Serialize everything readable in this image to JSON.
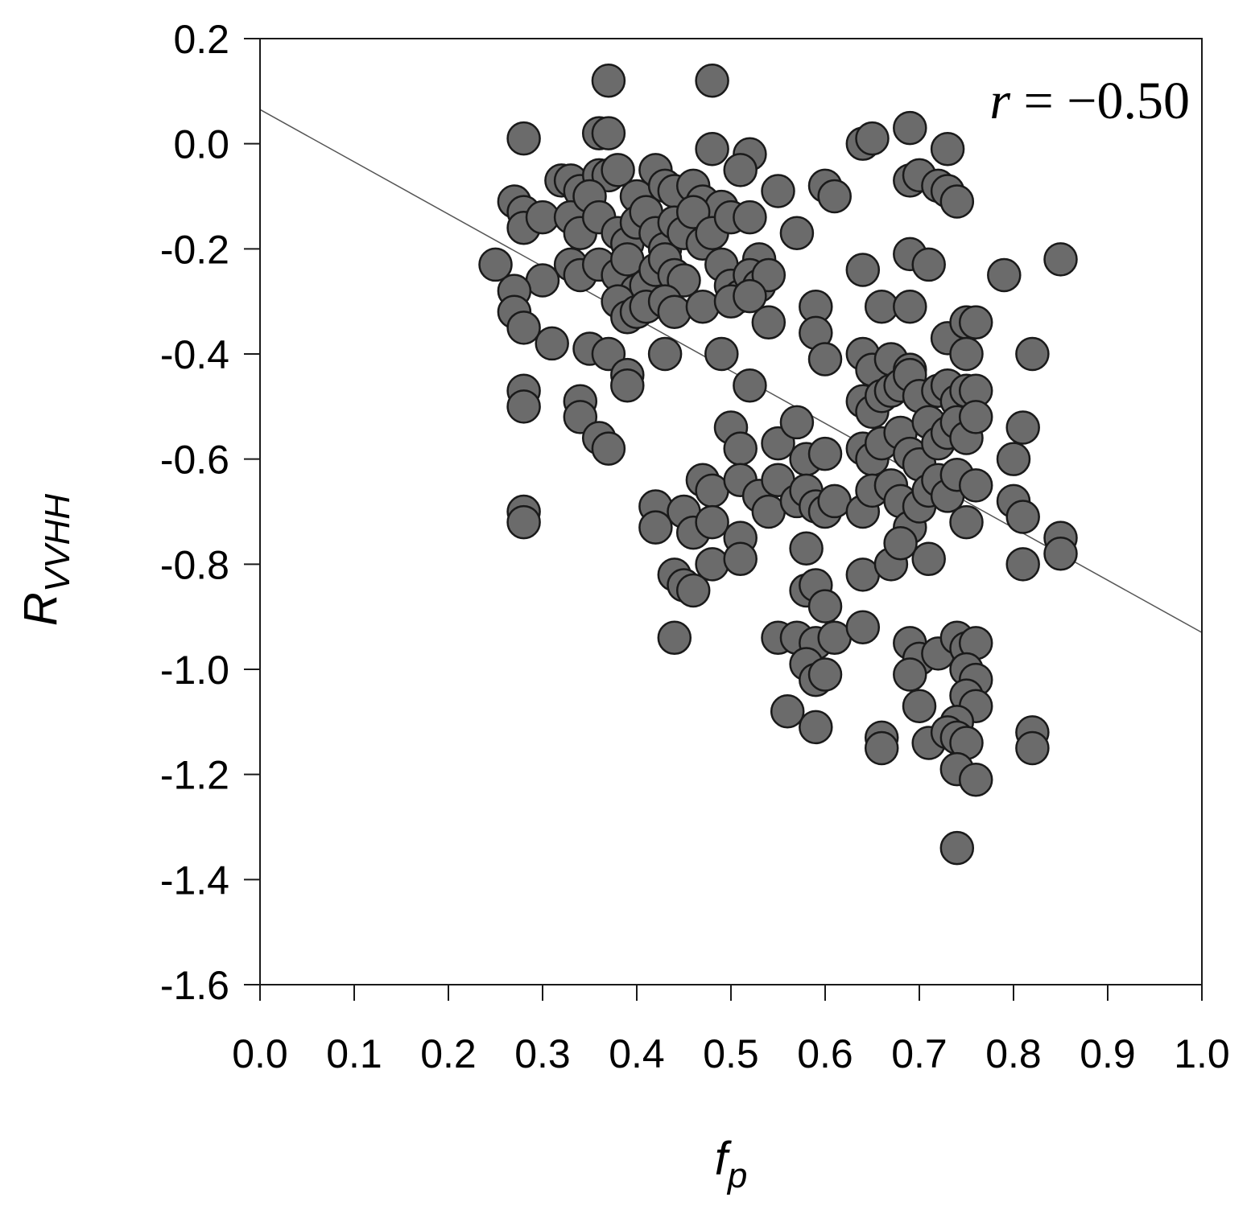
{
  "chart_data": {
    "type": "scatter",
    "xlabel": {
      "main": "f",
      "sub": "p"
    },
    "ylabel": {
      "main": "R",
      "sub": "VVHH"
    },
    "xlim": [
      0.0,
      1.0
    ],
    "ylim": [
      -1.6,
      0.2
    ],
    "xticks": [
      "0.0",
      "0.1",
      "0.2",
      "0.3",
      "0.4",
      "0.5",
      "0.6",
      "0.7",
      "0.8",
      "0.9",
      "1.0"
    ],
    "yticks": [
      "0.2",
      "0.0",
      "-0.2",
      "-0.4",
      "-0.6",
      "-0.8",
      "-1.0",
      "-1.2",
      "-1.4",
      "-1.6"
    ],
    "annotation": {
      "var": "r",
      "text": " = −0.50"
    },
    "grid": false,
    "point_color": "#6b6b6b",
    "point_edge_color": "#1a1a1a",
    "trendline": {
      "x": [
        0.0,
        1.0
      ],
      "y": [
        0.065,
        -0.93
      ],
      "color": "#555555"
    },
    "series": [
      {
        "points": [
          [
            0.37,
            0.12
          ],
          [
            0.48,
            0.12
          ],
          [
            0.28,
            0.01
          ],
          [
            0.36,
            0.02
          ],
          [
            0.37,
            0.02
          ],
          [
            0.48,
            -0.01
          ],
          [
            0.52,
            -0.02
          ],
          [
            0.69,
            0.03
          ],
          [
            0.64,
            0.0
          ],
          [
            0.65,
            0.01
          ],
          [
            0.73,
            -0.01
          ],
          [
            0.32,
            -0.07
          ],
          [
            0.33,
            -0.07
          ],
          [
            0.34,
            -0.09
          ],
          [
            0.36,
            -0.06
          ],
          [
            0.37,
            -0.06
          ],
          [
            0.38,
            -0.05
          ],
          [
            0.4,
            -0.1
          ],
          [
            0.42,
            -0.05
          ],
          [
            0.43,
            -0.08
          ],
          [
            0.44,
            -0.09
          ],
          [
            0.46,
            -0.08
          ],
          [
            0.47,
            -0.11
          ],
          [
            0.49,
            -0.12
          ],
          [
            0.51,
            -0.05
          ],
          [
            0.55,
            -0.09
          ],
          [
            0.6,
            -0.08
          ],
          [
            0.61,
            -0.1
          ],
          [
            0.69,
            -0.07
          ],
          [
            0.7,
            -0.06
          ],
          [
            0.72,
            -0.08
          ],
          [
            0.73,
            -0.09
          ],
          [
            0.74,
            -0.11
          ],
          [
            0.27,
            -0.11
          ],
          [
            0.28,
            -0.13
          ],
          [
            0.28,
            -0.16
          ],
          [
            0.3,
            -0.14
          ],
          [
            0.33,
            -0.14
          ],
          [
            0.34,
            -0.17
          ],
          [
            0.35,
            -0.1
          ],
          [
            0.36,
            -0.14
          ],
          [
            0.38,
            -0.17
          ],
          [
            0.39,
            -0.19
          ],
          [
            0.4,
            -0.15
          ],
          [
            0.41,
            -0.13
          ],
          [
            0.42,
            -0.17
          ],
          [
            0.43,
            -0.2
          ],
          [
            0.44,
            -0.15
          ],
          [
            0.45,
            -0.17
          ],
          [
            0.46,
            -0.13
          ],
          [
            0.47,
            -0.19
          ],
          [
            0.48,
            -0.17
          ],
          [
            0.5,
            -0.14
          ],
          [
            0.52,
            -0.14
          ],
          [
            0.53,
            -0.22
          ],
          [
            0.57,
            -0.17
          ],
          [
            0.25,
            -0.23
          ],
          [
            0.3,
            -0.26
          ],
          [
            0.33,
            -0.23
          ],
          [
            0.34,
            -0.25
          ],
          [
            0.36,
            -0.23
          ],
          [
            0.38,
            -0.25
          ],
          [
            0.39,
            -0.22
          ],
          [
            0.4,
            -0.28
          ],
          [
            0.41,
            -0.27
          ],
          [
            0.42,
            -0.24
          ],
          [
            0.43,
            -0.22
          ],
          [
            0.44,
            -0.25
          ],
          [
            0.45,
            -0.26
          ],
          [
            0.49,
            -0.23
          ],
          [
            0.5,
            -0.27
          ],
          [
            0.51,
            -0.29
          ],
          [
            0.52,
            -0.25
          ],
          [
            0.53,
            -0.27
          ],
          [
            0.54,
            -0.25
          ],
          [
            0.64,
            -0.24
          ],
          [
            0.69,
            -0.21
          ],
          [
            0.71,
            -0.23
          ],
          [
            0.79,
            -0.25
          ],
          [
            0.85,
            -0.22
          ],
          [
            0.27,
            -0.28
          ],
          [
            0.27,
            -0.32
          ],
          [
            0.28,
            -0.35
          ],
          [
            0.31,
            -0.38
          ],
          [
            0.35,
            -0.39
          ],
          [
            0.37,
            -0.4
          ],
          [
            0.38,
            -0.3
          ],
          [
            0.39,
            -0.33
          ],
          [
            0.4,
            -0.32
          ],
          [
            0.41,
            -0.31
          ],
          [
            0.43,
            -0.3
          ],
          [
            0.44,
            -0.32
          ],
          [
            0.47,
            -0.31
          ],
          [
            0.5,
            -0.3
          ],
          [
            0.52,
            -0.29
          ],
          [
            0.54,
            -0.34
          ],
          [
            0.59,
            -0.31
          ],
          [
            0.59,
            -0.36
          ],
          [
            0.6,
            -0.41
          ],
          [
            0.66,
            -0.31
          ],
          [
            0.69,
            -0.31
          ],
          [
            0.73,
            -0.37
          ],
          [
            0.75,
            -0.34
          ],
          [
            0.76,
            -0.34
          ],
          [
            0.43,
            -0.4
          ],
          [
            0.49,
            -0.4
          ],
          [
            0.64,
            -0.4
          ],
          [
            0.65,
            -0.43
          ],
          [
            0.67,
            -0.41
          ],
          [
            0.69,
            -0.43
          ],
          [
            0.75,
            -0.4
          ],
          [
            0.82,
            -0.4
          ],
          [
            0.28,
            -0.47
          ],
          [
            0.28,
            -0.5
          ],
          [
            0.34,
            -0.49
          ],
          [
            0.34,
            -0.52
          ],
          [
            0.39,
            -0.44
          ],
          [
            0.39,
            -0.46
          ],
          [
            0.52,
            -0.46
          ],
          [
            0.64,
            -0.49
          ],
          [
            0.65,
            -0.51
          ],
          [
            0.66,
            -0.48
          ],
          [
            0.67,
            -0.47
          ],
          [
            0.68,
            -0.46
          ],
          [
            0.69,
            -0.44
          ],
          [
            0.7,
            -0.48
          ],
          [
            0.72,
            -0.47
          ],
          [
            0.73,
            -0.46
          ],
          [
            0.74,
            -0.49
          ],
          [
            0.75,
            -0.47
          ],
          [
            0.76,
            -0.47
          ],
          [
            0.81,
            -0.54
          ],
          [
            0.36,
            -0.56
          ],
          [
            0.37,
            -0.58
          ],
          [
            0.5,
            -0.54
          ],
          [
            0.51,
            -0.58
          ],
          [
            0.55,
            -0.57
          ],
          [
            0.57,
            -0.53
          ],
          [
            0.58,
            -0.6
          ],
          [
            0.6,
            -0.59
          ],
          [
            0.64,
            -0.58
          ],
          [
            0.65,
            -0.6
          ],
          [
            0.66,
            -0.57
          ],
          [
            0.68,
            -0.55
          ],
          [
            0.69,
            -0.59
          ],
          [
            0.7,
            -0.61
          ],
          [
            0.71,
            -0.53
          ],
          [
            0.72,
            -0.57
          ],
          [
            0.73,
            -0.55
          ],
          [
            0.74,
            -0.53
          ],
          [
            0.75,
            -0.56
          ],
          [
            0.76,
            -0.52
          ],
          [
            0.8,
            -0.6
          ],
          [
            0.28,
            -0.7
          ],
          [
            0.28,
            -0.72
          ],
          [
            0.42,
            -0.69
          ],
          [
            0.42,
            -0.73
          ],
          [
            0.45,
            -0.7
          ],
          [
            0.46,
            -0.74
          ],
          [
            0.47,
            -0.64
          ],
          [
            0.48,
            -0.66
          ],
          [
            0.48,
            -0.72
          ],
          [
            0.51,
            -0.64
          ],
          [
            0.53,
            -0.67
          ],
          [
            0.54,
            -0.7
          ],
          [
            0.55,
            -0.64
          ],
          [
            0.57,
            -0.68
          ],
          [
            0.58,
            -0.66
          ],
          [
            0.59,
            -0.69
          ],
          [
            0.6,
            -0.7
          ],
          [
            0.61,
            -0.68
          ],
          [
            0.64,
            -0.7
          ],
          [
            0.65,
            -0.66
          ],
          [
            0.67,
            -0.65
          ],
          [
            0.68,
            -0.68
          ],
          [
            0.69,
            -0.73
          ],
          [
            0.7,
            -0.69
          ],
          [
            0.71,
            -0.66
          ],
          [
            0.72,
            -0.64
          ],
          [
            0.73,
            -0.67
          ],
          [
            0.74,
            -0.63
          ],
          [
            0.75,
            -0.72
          ],
          [
            0.76,
            -0.65
          ],
          [
            0.8,
            -0.68
          ],
          [
            0.81,
            -0.71
          ],
          [
            0.44,
            -0.82
          ],
          [
            0.45,
            -0.84
          ],
          [
            0.46,
            -0.85
          ],
          [
            0.48,
            -0.8
          ],
          [
            0.51,
            -0.75
          ],
          [
            0.51,
            -0.79
          ],
          [
            0.58,
            -0.77
          ],
          [
            0.58,
            -0.85
          ],
          [
            0.59,
            -0.84
          ],
          [
            0.6,
            -0.88
          ],
          [
            0.64,
            -0.82
          ],
          [
            0.67,
            -0.8
          ],
          [
            0.68,
            -0.76
          ],
          [
            0.71,
            -0.79
          ],
          [
            0.81,
            -0.8
          ],
          [
            0.85,
            -0.75
          ],
          [
            0.85,
            -0.78
          ],
          [
            0.44,
            -0.94
          ],
          [
            0.55,
            -0.94
          ],
          [
            0.57,
            -0.94
          ],
          [
            0.59,
            -0.95
          ],
          [
            0.61,
            -0.94
          ],
          [
            0.58,
            -0.99
          ],
          [
            0.59,
            -1.02
          ],
          [
            0.6,
            -1.01
          ],
          [
            0.64,
            -0.92
          ],
          [
            0.69,
            -0.95
          ],
          [
            0.7,
            -0.98
          ],
          [
            0.72,
            -0.97
          ],
          [
            0.69,
            -1.01
          ],
          [
            0.7,
            -1.07
          ],
          [
            0.74,
            -0.94
          ],
          [
            0.75,
            -0.96
          ],
          [
            0.76,
            -0.95
          ],
          [
            0.75,
            -1.0
          ],
          [
            0.76,
            -1.02
          ],
          [
            0.75,
            -1.05
          ],
          [
            0.76,
            -1.07
          ],
          [
            0.74,
            -1.1
          ],
          [
            0.56,
            -1.08
          ],
          [
            0.59,
            -1.11
          ],
          [
            0.66,
            -1.13
          ],
          [
            0.66,
            -1.15
          ],
          [
            0.71,
            -1.14
          ],
          [
            0.73,
            -1.12
          ],
          [
            0.74,
            -1.13
          ],
          [
            0.75,
            -1.14
          ],
          [
            0.74,
            -1.19
          ],
          [
            0.76,
            -1.21
          ],
          [
            0.82,
            -1.12
          ],
          [
            0.82,
            -1.15
          ],
          [
            0.74,
            -1.34
          ]
        ]
      }
    ]
  }
}
